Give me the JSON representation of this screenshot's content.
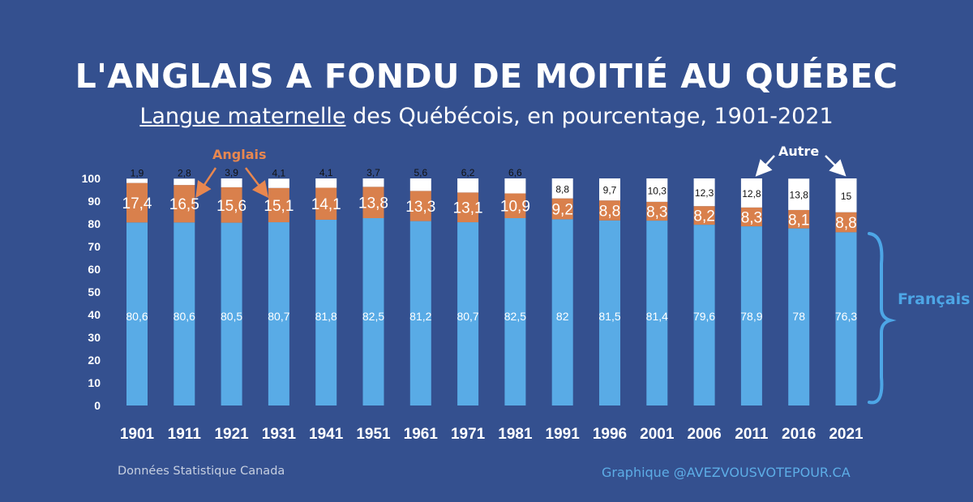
{
  "header": {
    "title": "L'ANGLAIS A FONDU DE MOITIÉ AU QUÉBEC",
    "subtitle_underlined": "Langue maternelle",
    "subtitle_rest": " des Québécois, en pourcentage, 1901-2021"
  },
  "annotations": {
    "anglais": "Anglais",
    "autre": "Autre",
    "francais": "Français"
  },
  "footer": {
    "source": "Données Statistique Canada",
    "credit": "Graphique @AVEZVOUSVOTEPOUR.CA"
  },
  "colors": {
    "background": "#34508f",
    "francais": "#59abe6",
    "anglais": "#d9804c",
    "autre": "#ffffff"
  },
  "chart_data": {
    "type": "bar",
    "stacked": true,
    "categories": [
      "1901",
      "1911",
      "1921",
      "1931",
      "1941",
      "1951",
      "1961",
      "1971",
      "1981",
      "1991",
      "1996",
      "2001",
      "2006",
      "2011",
      "2016",
      "2021"
    ],
    "series": [
      {
        "name": "Français",
        "values": [
          80.6,
          80.6,
          80.5,
          80.7,
          81.8,
          82.5,
          81.2,
          80.7,
          82.5,
          82,
          81.5,
          81.4,
          79.6,
          78.9,
          78,
          76.3
        ],
        "labels": [
          "80,6",
          "80,6",
          "80,5",
          "80,7",
          "81,8",
          "82,5",
          "81,2",
          "80,7",
          "82,5",
          "82",
          "81,5",
          "81,4",
          "79,6",
          "78,9",
          "78",
          "76,3"
        ]
      },
      {
        "name": "Anglais",
        "values": [
          17.4,
          16.5,
          15.6,
          15.1,
          14.1,
          13.8,
          13.3,
          13.1,
          10.9,
          9.2,
          8.8,
          8.3,
          8.2,
          8.3,
          8.1,
          8.8
        ],
        "labels": [
          "17,4",
          "16,5",
          "15,6",
          "15,1",
          "14,1",
          "13,8",
          "13,3",
          "13,1",
          "10,9",
          "9,2",
          "8,8",
          "8,3",
          "8,2",
          "8,3",
          "8,1",
          "8,8"
        ]
      },
      {
        "name": "Autre",
        "values": [
          1.9,
          2.8,
          3.9,
          4.1,
          4.1,
          3.7,
          5.6,
          6.2,
          6.6,
          8.8,
          9.7,
          10.3,
          12.3,
          12.8,
          13.8,
          15
        ],
        "labels": [
          "1,9",
          "2,8",
          "3,9",
          "4,1",
          "4,1",
          "3,7",
          "5,6",
          "6,2",
          "6,6",
          "8,8",
          "9,7",
          "10,3",
          "12,3",
          "12,8",
          "13,8",
          "15"
        ]
      }
    ],
    "ylim": [
      0,
      100
    ],
    "yticks": [
      0,
      10,
      20,
      30,
      40,
      50,
      60,
      70,
      80,
      90,
      100
    ],
    "grid": false,
    "legend": "none"
  }
}
